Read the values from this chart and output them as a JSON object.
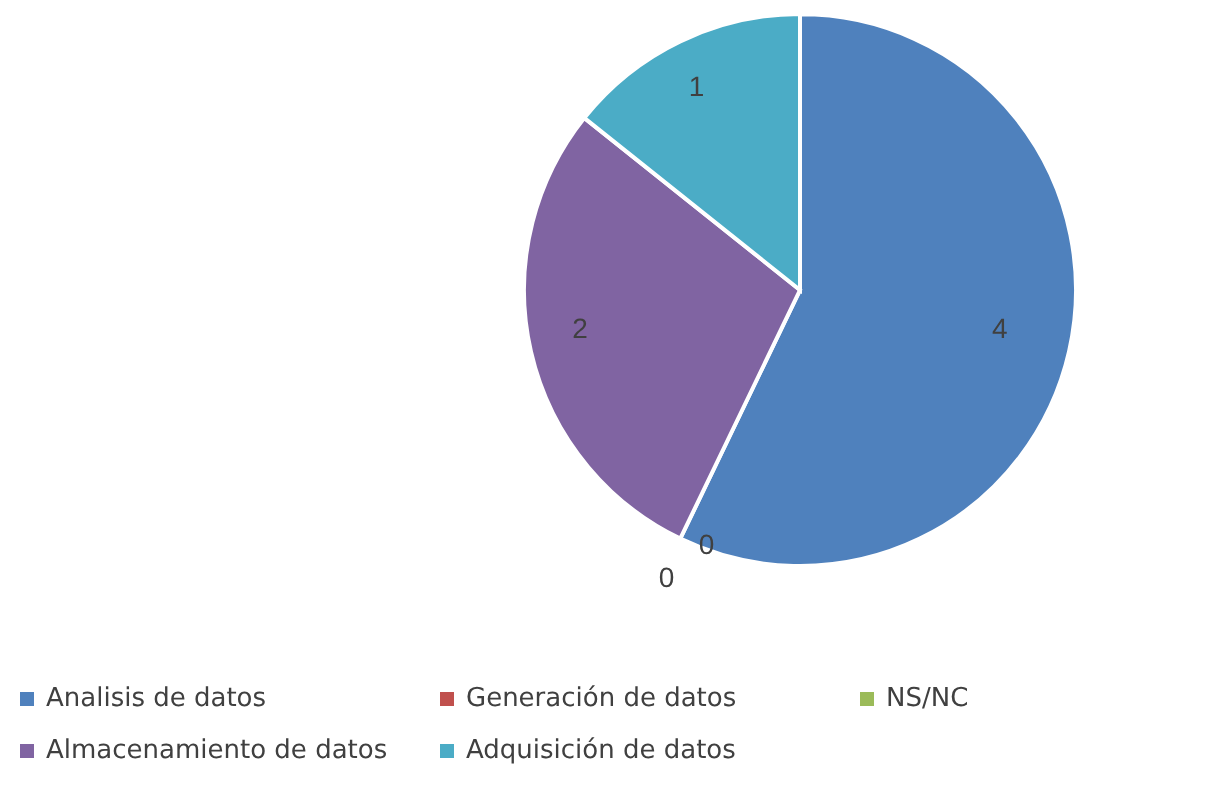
{
  "chart_data": {
    "type": "pie",
    "categories": [
      "Analisis de datos",
      "Generación de datos",
      "NS/NC",
      "Almacenamiento de datos",
      "Adquisición de datos"
    ],
    "values": [
      4,
      0,
      0,
      2,
      1
    ],
    "colors": [
      "#4f81bd",
      "#c0504d",
      "#9bbb59",
      "#8064a2",
      "#4bacc6"
    ],
    "value_labels": [
      "4",
      "0",
      "0",
      "2",
      "1"
    ],
    "legend": "bottom"
  }
}
